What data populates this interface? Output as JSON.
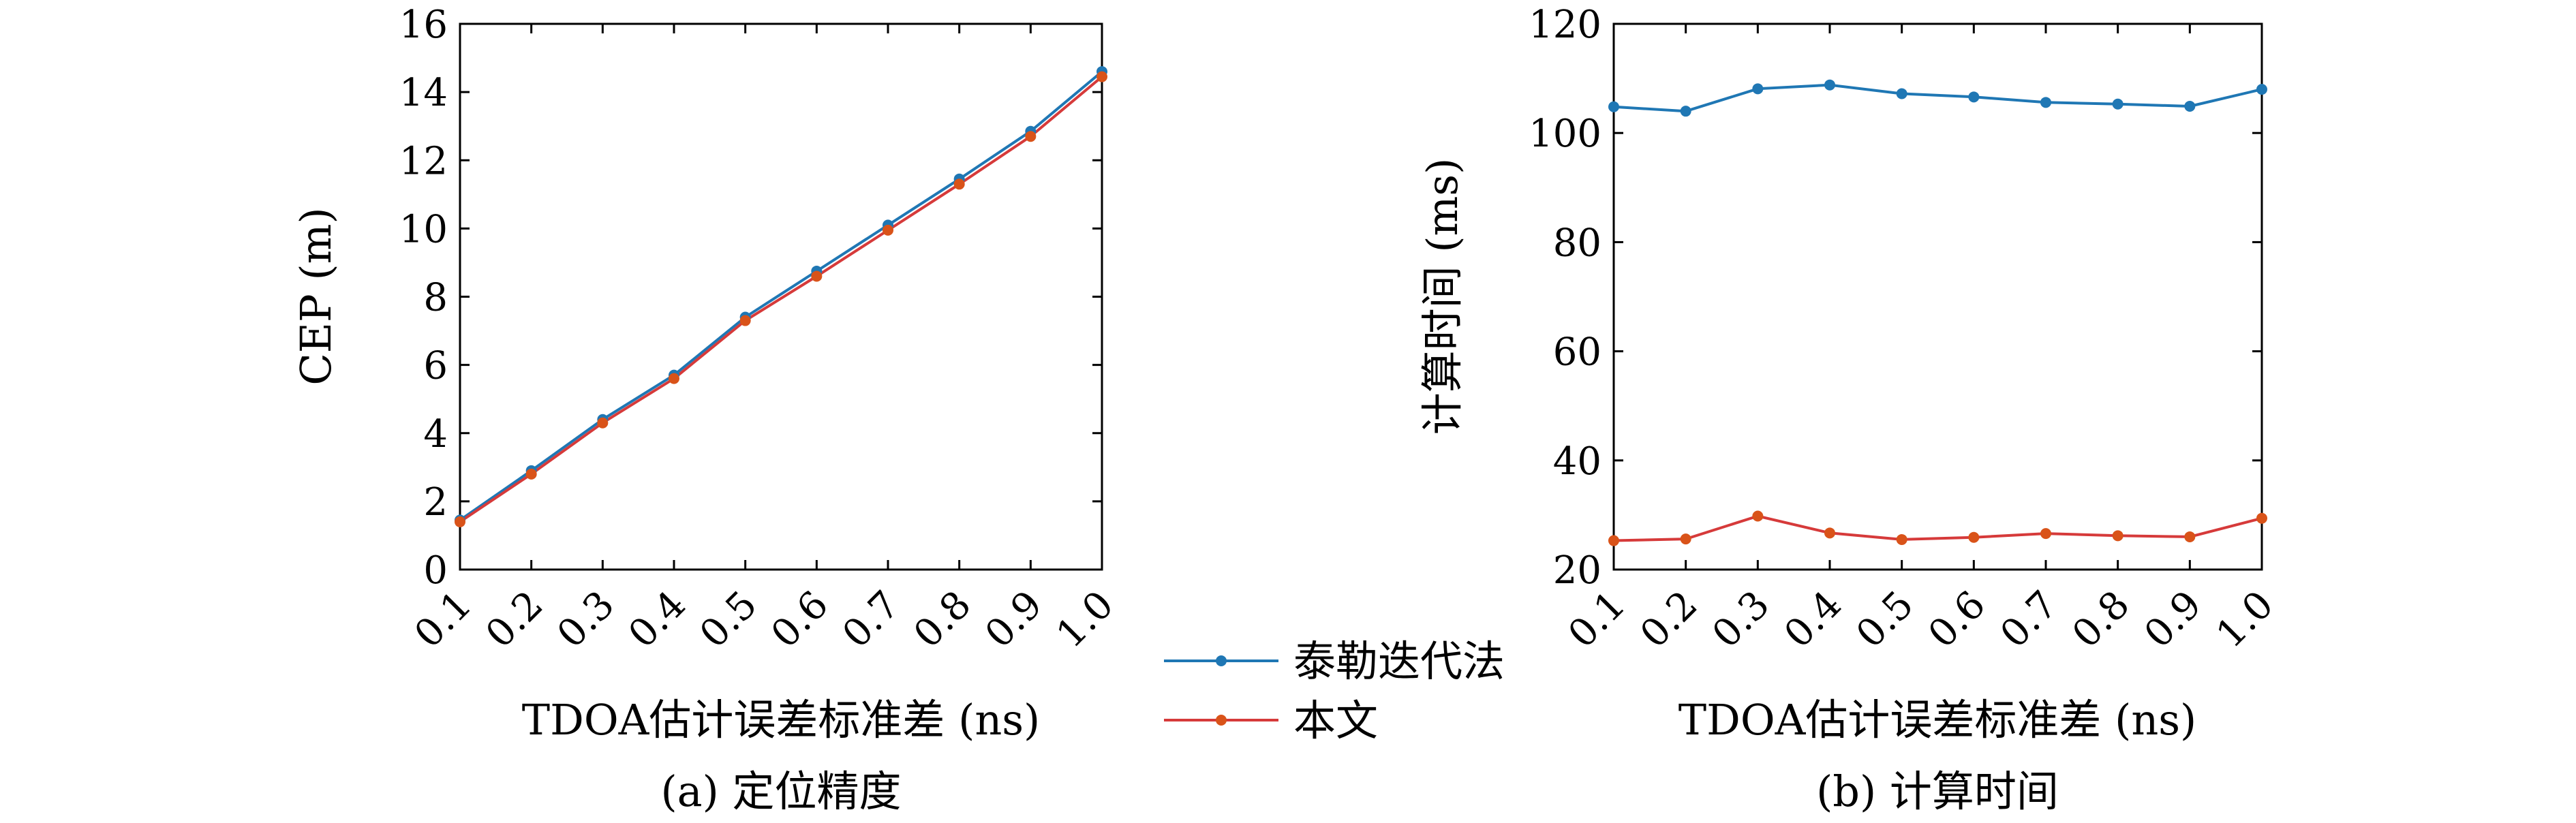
{
  "colors": {
    "taylor": "#1f77b4",
    "ours": "#d95319",
    "ours_line": "#d63a3a",
    "axes": "#000000"
  },
  "legend": {
    "placement": "between-panels-bottom",
    "items": [
      {
        "label": "泰勒迭代法",
        "color": "#1f77b4"
      },
      {
        "label": "本文",
        "color": "#d95319"
      }
    ]
  },
  "chart_data": [
    {
      "type": "line",
      "caption": "(a) 定位精度",
      "xlabel": "TDOA估计误差标准差 (ns)",
      "ylabel": "CEP (m)",
      "x": [
        0.1,
        0.2,
        0.3,
        0.4,
        0.5,
        0.6,
        0.7,
        0.8,
        0.9,
        1.0
      ],
      "xticks": [
        "0.1",
        "0.2",
        "0.3",
        "0.4",
        "0.5",
        "0.6",
        "0.7",
        "0.8",
        "0.9",
        "1.0"
      ],
      "xlim": [
        0.1,
        1.0
      ],
      "ylim": [
        0,
        16
      ],
      "yticks": [
        "0",
        "2",
        "4",
        "6",
        "8",
        "10",
        "12",
        "14",
        "16"
      ],
      "grid": false,
      "series": [
        {
          "name": "泰勒迭代法",
          "color": "#1f77b4",
          "values": [
            1.45,
            2.9,
            4.4,
            5.7,
            7.4,
            8.75,
            10.1,
            11.45,
            12.85,
            14.6
          ]
        },
        {
          "name": "本文",
          "color": "#d95319",
          "values": [
            1.4,
            2.8,
            4.3,
            5.6,
            7.3,
            8.6,
            9.95,
            11.3,
            12.7,
            14.45
          ]
        }
      ]
    },
    {
      "type": "line",
      "caption": "(b) 计算时间",
      "xlabel": "TDOA估计误差标准差 (ns)",
      "ylabel": "计算时间 (ms)",
      "x": [
        0.1,
        0.2,
        0.3,
        0.4,
        0.5,
        0.6,
        0.7,
        0.8,
        0.9,
        1.0
      ],
      "xticks": [
        "0.1",
        "0.2",
        "0.3",
        "0.4",
        "0.5",
        "0.6",
        "0.7",
        "0.8",
        "0.9",
        "1.0"
      ],
      "xlim": [
        0.1,
        1.0
      ],
      "ylim": [
        20,
        120
      ],
      "yticks": [
        "20",
        "40",
        "60",
        "80",
        "100",
        "120"
      ],
      "grid": false,
      "series": [
        {
          "name": "泰勒迭代法",
          "color": "#1f77b4",
          "values": [
            104.8,
            104.0,
            108.1,
            108.8,
            107.2,
            106.6,
            105.6,
            105.3,
            104.9,
            108.0
          ]
        },
        {
          "name": "本文",
          "color": "#d95319",
          "values": [
            25.3,
            25.6,
            29.8,
            26.7,
            25.5,
            25.9,
            26.6,
            26.2,
            26.0,
            29.4
          ]
        }
      ]
    }
  ]
}
